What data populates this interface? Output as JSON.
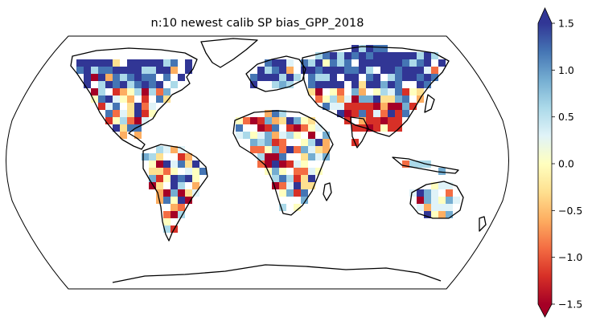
{
  "title": "n:10 newest calib SP  bias_GPP_2018",
  "colorbar": {
    "colormap": "RdYlBu",
    "vmin": -1.5,
    "vmax": 1.5,
    "extend": "both",
    "ticks": [
      {
        "value": 1.5,
        "label": "1.5"
      },
      {
        "value": 1.0,
        "label": "1.0"
      },
      {
        "value": 0.5,
        "label": "0.5"
      },
      {
        "value": 0.0,
        "label": "0.0"
      },
      {
        "value": -0.5,
        "label": "−0.5"
      },
      {
        "value": -1.0,
        "label": "−1.0"
      },
      {
        "value": -1.5,
        "label": "−1.5"
      }
    ],
    "colors": [
      "#a50026",
      "#d73027",
      "#f46d43",
      "#fdae61",
      "#fee090",
      "#ffffbf",
      "#e0f3f8",
      "#abd9e9",
      "#74add1",
      "#4575b4",
      "#313695"
    ]
  },
  "projection": "Robinson",
  "colors": {
    "land_outline": "#000000",
    "background": "#ffffff"
  }
}
